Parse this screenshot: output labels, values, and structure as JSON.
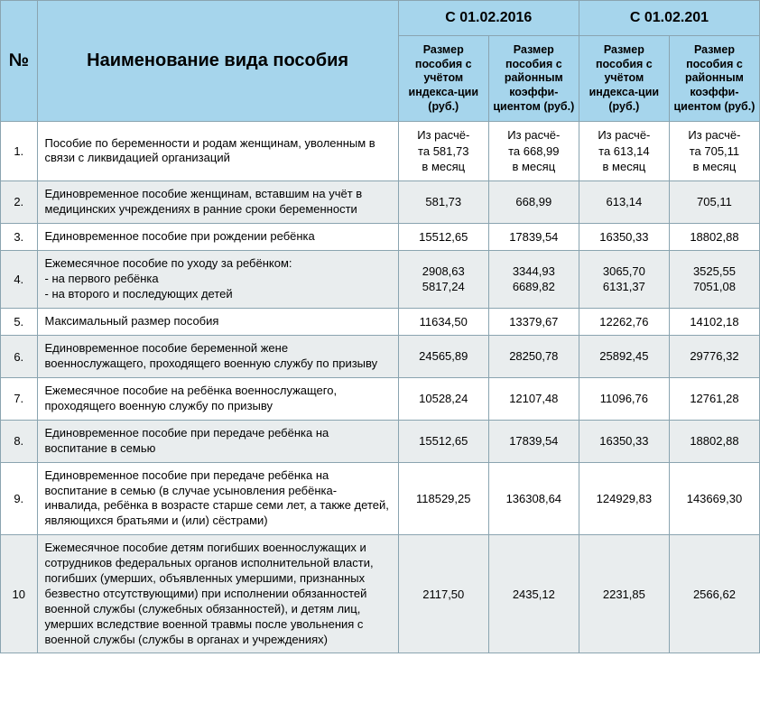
{
  "header": {
    "col_num": "№",
    "col_name": "Наименование вида пособия",
    "period_a": "С 01.02.2016",
    "period_b": "С 01.02.201",
    "sub_index": "Размер пособия с учётом индекса-ции (руб.)",
    "sub_coef": "Размер пособия с районным коэффи-циентом (руб.)"
  },
  "rows": [
    {
      "num": "1.",
      "name": "Пособие по беременности и родам женщинам, уволенным в связи с ликвидацией организаций",
      "a1": "Из расчё-\nта 581,73\nв месяц",
      "a2": "Из расчё-\nта 668,99\nв месяц",
      "b1": "Из расчё-\nта 613,14\nв месяц",
      "b2": "Из расчё-\nта 705,11\nв месяц"
    },
    {
      "num": "2.",
      "name": "Единовременное пособие женщинам, вставшим на учёт в медицинских учреждениях в ранние сроки беременности",
      "a1": "581,73",
      "a2": "668,99",
      "b1": "613,14",
      "b2": "705,11"
    },
    {
      "num": "3.",
      "name": "Единовременное пособие при рождении ребёнка",
      "a1": "15512,65",
      "a2": "17839,54",
      "b1": "16350,33",
      "b2": "18802,88"
    },
    {
      "num": "4.",
      "name": "Ежемесячное пособие по уходу за ребёнком:\n- на первого ребёнка\n- на второго и последующих детей",
      "a1": "2908,63\n5817,24",
      "a2": "3344,93\n6689,82",
      "b1": "3065,70\n6131,37",
      "b2": "3525,55\n7051,08"
    },
    {
      "num": "5.",
      "name": "Максимальный размер пособия",
      "a1": "11634,50",
      "a2": "13379,67",
      "b1": "12262,76",
      "b2": "14102,18"
    },
    {
      "num": "6.",
      "name": "Единовременное пособие беременной жене военнослужащего, проходящего военную службу по призыву",
      "a1": "24565,89",
      "a2": "28250,78",
      "b1": "25892,45",
      "b2": "29776,32"
    },
    {
      "num": "7.",
      "name": "Ежемесячное пособие на ребёнка военнослужащего, проходящего военную службу по призыву",
      "a1": "10528,24",
      "a2": "12107,48",
      "b1": "11096,76",
      "b2": "12761,28"
    },
    {
      "num": "8.",
      "name": "Единовременное пособие при передаче ребёнка на воспитание в семью",
      "a1": "15512,65",
      "a2": "17839,54",
      "b1": "16350,33",
      "b2": "18802,88"
    },
    {
      "num": "9.",
      "name": "Единовременное пособие при передаче ребёнка на воспитание в семью (в случае усыновления ребёнка-инвалида, ребёнка в возрасте старше семи лет, а также детей, являющихся братьями и (или) сёстрами)",
      "a1": "118529,25",
      "a2": "136308,64",
      "b1": "124929,83",
      "b2": "143669,30"
    },
    {
      "num": "10",
      "name": "Ежемесячное пособие детям погибших военнослужащих и сотрудников федеральных органов исполнительной власти, погибших (умерших, объявленных умершими, признанных безвестно отсутствующими) при исполнении обязанностей военной службы (служебных обязанностей), и детям лиц, умерших вследствие военной травмы после увольнения с военной службы (службы в органах и учреждениях)",
      "a1": "2117,50",
      "a2": "2435,12",
      "b1": "2231,85",
      "b2": "2566,62"
    }
  ],
  "colors": {
    "header_bg": "#a6d5ec",
    "border": "#8aa4b0",
    "row_even_bg": "#e9edee",
    "row_odd_bg": "#ffffff",
    "text": "#000000"
  }
}
